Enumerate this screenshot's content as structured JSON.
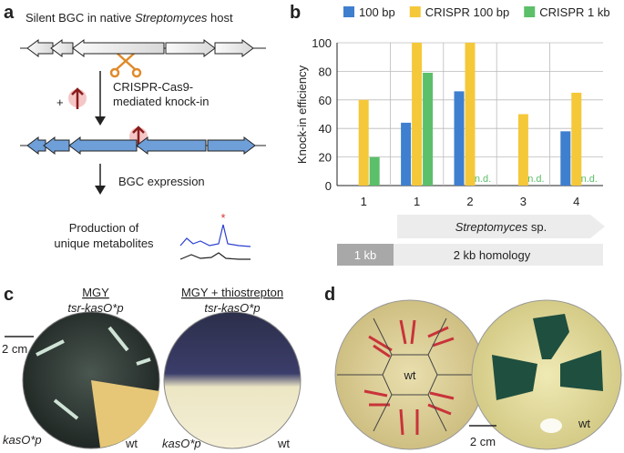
{
  "panel_a": {
    "label": "a",
    "title_prefix": "Silent BGC in native ",
    "title_italic": "Streptomyces",
    "title_suffix": " host",
    "plus": "+",
    "step1": [
      "CRISPR-Cas9-",
      "mediated knock-in"
    ],
    "step2": "BGC expression",
    "product": [
      "Production of",
      "unique metabolites"
    ],
    "peak_marker": "*"
  },
  "chart_data": {
    "type": "bar",
    "label": "b",
    "ylabel": "Knock-in efficiency",
    "categories": [
      "1",
      "1",
      "2",
      "3",
      "4"
    ],
    "series": [
      {
        "name": "100 bp",
        "color": "#3f7fcf",
        "values": [
          0,
          44,
          66,
          0,
          38
        ]
      },
      {
        "name": "CRISPR 100 bp",
        "color": "#f5c83a",
        "values": [
          60,
          100,
          100,
          50,
          65
        ]
      },
      {
        "name": "CRISPR 1 kb",
        "color": "#5cbf6a",
        "values": [
          20,
          79,
          null,
          null,
          null
        ],
        "value_labels": [
          null,
          null,
          "n.d.",
          "n.d.",
          "n.d."
        ]
      }
    ],
    "ylim": [
      0,
      100
    ],
    "yticks": [
      0,
      20,
      40,
      60,
      80,
      100
    ],
    "legend": "top",
    "group_label_italic": "Streptomyces",
    "group_label_suffix": " sp.",
    "bands": [
      "1 kb",
      "2 kb homology"
    ]
  },
  "panel_c": {
    "label": "c",
    "left_title": "MGY",
    "left_sub": "tsr-kasO*p",
    "right_title": "MGY + thiostrepton",
    "right_sub": "tsr-kasO*p",
    "scale": "2 cm",
    "left_labels": [
      "kasO*p",
      "wt"
    ],
    "right_labels": [
      "kasO*p",
      "wt"
    ]
  },
  "panel_d": {
    "label": "d",
    "left_center": "wt",
    "scale": "2 cm",
    "right_label": "wt"
  }
}
